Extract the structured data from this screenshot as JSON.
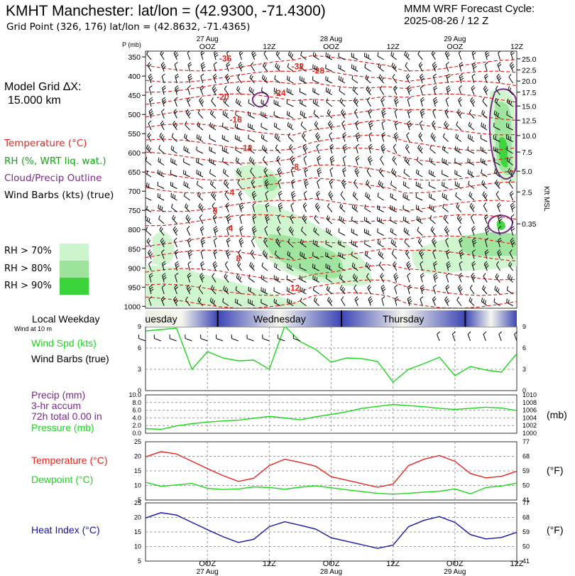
{
  "header": {
    "station_title": "KMHT Manchester:  lat/lon = (42.9300, -71.4300)",
    "grid_point": "Grid Point (326, 176) lat/lon = (42.8632, -71.4365)",
    "cycle_line1": "MMM WRF Forecast Cycle:",
    "cycle_line2": "2025-08-26 / 12  Z"
  },
  "left_panel": {
    "grid_dx_line1": "Model Grid ΔX:",
    "grid_dx_line2": "15.000 km",
    "legend": [
      {
        "label": "Temperature (°C)",
        "color": "#e8251e"
      },
      {
        "label": "RH (%, WRT liq. wat.)",
        "color": "#13a313"
      },
      {
        "label": "Cloud/Precip Outline",
        "color": "#7a2a8c"
      },
      {
        "label": "Wind Barbs (kts) (true)",
        "color": "#000000"
      }
    ],
    "rh_legend": [
      {
        "label": "RH > 70%",
        "color": "#cdf5cd"
      },
      {
        "label": "RH > 80%",
        "color": "#9ce39c"
      },
      {
        "label": "RH > 90%",
        "color": "#3ad43a"
      }
    ]
  },
  "time_axis": {
    "top_labels": [
      {
        "label": "OOZ",
        "date": "27 Aug",
        "hour": 12
      },
      {
        "label": "12Z",
        "date": "",
        "hour": 24
      },
      {
        "label": "OOZ",
        "date": "28 Aug",
        "hour": 36
      },
      {
        "label": "12Z",
        "date": "",
        "hour": 48
      },
      {
        "label": "OOZ",
        "date": "29 Aug",
        "hour": 60
      },
      {
        "label": "12Z",
        "date": "",
        "hour": 72
      }
    ],
    "range_hours": [
      0,
      72
    ]
  },
  "weekday_bar": {
    "title": "Local Weekday",
    "subtitle": "Wind at 10 m",
    "days": [
      {
        "label": "uesday",
        "start": 0,
        "end": 14
      },
      {
        "label": "Wednesday",
        "start": 14,
        "end": 38
      },
      {
        "label": "Thursday",
        "start": 38,
        "end": 62
      },
      {
        "label": "",
        "start": 62,
        "end": 72
      }
    ]
  },
  "chart_data": [
    {
      "type": "heatmap",
      "name": "sounding-cross-section",
      "ylabel": "P (mb)",
      "yticks": [
        350,
        400,
        450,
        500,
        550,
        600,
        650,
        700,
        750,
        800,
        850,
        900,
        950,
        1000
      ],
      "right_axis_label": "Kft MSL",
      "right_ticks": [
        {
          "p": 355,
          "label": "25.0"
        },
        {
          "p": 384,
          "label": "22.5"
        },
        {
          "p": 413,
          "label": "20.0"
        },
        {
          "p": 442,
          "label": "17.5"
        },
        {
          "p": 478,
          "label": "15.0"
        },
        {
          "p": 515,
          "label": "12.5"
        },
        {
          "p": 555,
          "label": "10.0"
        },
        {
          "p": 598,
          "label": "7.5"
        },
        {
          "p": 648,
          "label": "5.0"
        },
        {
          "p": 702,
          "label": "2.5"
        },
        {
          "p": 785,
          "label": "0.35"
        }
      ],
      "temperature_labels": [
        {
          "text": "-36",
          "x": 15.5,
          "p": 362
        },
        {
          "text": "-32",
          "x": 29.5,
          "p": 382
        },
        {
          "text": "-28",
          "x": 33.5,
          "p": 393
        },
        {
          "text": "-24",
          "x": 26.0,
          "p": 452
        },
        {
          "text": "-20",
          "x": 15.0,
          "p": 462
        },
        {
          "text": "-16",
          "x": 17.5,
          "p": 521
        },
        {
          "text": "-12",
          "x": 19.5,
          "p": 595
        },
        {
          "text": "-8",
          "x": 29.0,
          "p": 644
        },
        {
          "text": "-4",
          "x": 16.5,
          "p": 711
        },
        {
          "text": "0",
          "x": 13.5,
          "p": 760
        },
        {
          "text": "4",
          "x": 16.5,
          "p": 804
        },
        {
          "text": "8",
          "x": 18.0,
          "p": 883
        },
        {
          "text": "12",
          "x": 29.0,
          "p": 960
        }
      ]
    },
    {
      "type": "line",
      "name": "wind-speed",
      "series": [
        {
          "name": "Wind Spd (kts)",
          "color": "#1ad81a",
          "x": [
            0,
            3,
            6,
            9,
            12,
            15,
            18,
            21,
            24,
            27,
            30,
            33,
            36,
            39,
            42,
            45,
            48,
            51,
            54,
            57,
            60,
            63,
            66,
            69,
            72
          ],
          "values": [
            8.4,
            8.6,
            8.8,
            3.0,
            5.5,
            4.6,
            4.2,
            4.3,
            3.0,
            9.1,
            6.9,
            5.8,
            4.0,
            4.6,
            4.5,
            4.1,
            1.2,
            3.0,
            3.8,
            4.7,
            2.1,
            3.4,
            2.9,
            2.6,
            5.2
          ]
        }
      ],
      "ylim": [
        0,
        9
      ],
      "left_ticks": [
        0,
        3,
        6,
        9
      ],
      "right_ticks": [
        0,
        3,
        6,
        9
      ]
    },
    {
      "type": "line",
      "name": "precip-pressure",
      "series": [
        {
          "name": "Pressure (mb)",
          "color": "#1ad81a",
          "x": [
            0,
            3,
            6,
            9,
            12,
            15,
            18,
            21,
            24,
            27,
            30,
            33,
            36,
            39,
            42,
            45,
            48,
            51,
            54,
            57,
            60,
            63,
            66,
            69,
            72
          ],
          "values": [
            1001.2,
            1001.0,
            1001.9,
            1002.5,
            1002.9,
            1003.2,
            1003.4,
            1003.9,
            1004.4,
            1004.0,
            1003.5,
            1004.3,
            1004.9,
            1005.6,
            1006.5,
            1007.0,
            1007.5,
            1007.2,
            1006.9,
            1006.5,
            1006.2,
            1006.5,
            1006.8,
            1006.6,
            1005.9
          ]
        }
      ],
      "left_ticks": [
        "0.0",
        "2.0",
        "4.0",
        "6.0",
        "8.0",
        "10.0"
      ],
      "right_ticks": [
        "1000",
        "1002",
        "1004",
        "1006",
        "1008",
        "1010"
      ],
      "ylim": [
        1000,
        1010
      ]
    },
    {
      "type": "line",
      "name": "temperature-dewpoint",
      "series": [
        {
          "name": "Temperature (°C)",
          "color": "#e8251e",
          "x": [
            0,
            3,
            6,
            9,
            12,
            15,
            18,
            21,
            24,
            27,
            30,
            33,
            36,
            39,
            42,
            45,
            48,
            51,
            54,
            57,
            60,
            63,
            66,
            69,
            72
          ],
          "values": [
            19.8,
            21.6,
            20.8,
            18.3,
            15.8,
            13.4,
            11.4,
            12.5,
            16.8,
            19.0,
            17.9,
            16.6,
            13.0,
            11.8,
            10.6,
            9.4,
            10.5,
            16.8,
            19.0,
            20.3,
            18.3,
            14.1,
            12.6,
            13.1,
            14.9
          ]
        },
        {
          "name": "Dewpoint (°C)",
          "color": "#1ad81a",
          "x": [
            0,
            3,
            6,
            9,
            12,
            15,
            18,
            21,
            24,
            27,
            30,
            33,
            36,
            39,
            42,
            45,
            48,
            51,
            54,
            57,
            60,
            63,
            66,
            69,
            72
          ],
          "values": [
            11.1,
            9.7,
            10.2,
            10.7,
            9.0,
            8.6,
            8.8,
            9.5,
            9.3,
            8.7,
            9.4,
            9.9,
            9.2,
            8.5,
            7.9,
            7.3,
            7.0,
            7.3,
            7.7,
            8.0,
            8.8,
            7.1,
            9.3,
            9.8,
            10.8
          ]
        }
      ],
      "ylim": [
        5,
        25
      ],
      "left_ticks": [
        5,
        10,
        15,
        20,
        25
      ],
      "right_ticks": [
        "41",
        "50",
        "59",
        "68",
        "77"
      ]
    },
    {
      "type": "line",
      "name": "heat-index",
      "series": [
        {
          "name": "Heat Index (°C)",
          "color": "#1414a8",
          "x": [
            0,
            3,
            6,
            9,
            12,
            15,
            18,
            21,
            24,
            27,
            30,
            33,
            36,
            39,
            42,
            45,
            48,
            51,
            54,
            57,
            60,
            63,
            66,
            69,
            72
          ],
          "values": [
            19.8,
            21.6,
            20.8,
            18.3,
            15.8,
            13.4,
            11.4,
            12.5,
            16.8,
            18.5,
            17.3,
            16.0,
            13.0,
            11.8,
            10.6,
            9.4,
            10.5,
            16.8,
            19.0,
            20.3,
            18.3,
            14.1,
            12.6,
            13.1,
            14.9
          ]
        }
      ],
      "ylim": [
        5,
        25
      ],
      "left_ticks": [
        5,
        10,
        15,
        20,
        25
      ],
      "right_ticks": [
        "41",
        "50",
        "59",
        "68",
        "77"
      ]
    }
  ],
  "panel_labels": {
    "wind_spd": "Wind Spd (kts)",
    "wind_barbs": "Wind Barbs (true)",
    "precip_line1": "Precip (mm)",
    "precip_line2": "3-hr accum",
    "precip_line3": "72h total 0.00 in",
    "pressure": "Pressure (mb)",
    "pressure_unit": "(mb)",
    "temperature": "Temperature (°C)",
    "dewpoint": "Dewpoint (°C)",
    "temp_unit": "(°F)",
    "heat_index": "Heat Index (°C)",
    "heat_unit": "(°F)"
  },
  "bottom_axis": [
    {
      "label": "OOZ",
      "date": "27 Aug",
      "hour": 12
    },
    {
      "label": "12Z",
      "date": "",
      "hour": 24
    },
    {
      "label": "OOZ",
      "date": "28 Aug",
      "hour": 36
    },
    {
      "label": "12Z",
      "date": "",
      "hour": 48
    },
    {
      "label": "OOZ",
      "date": "29 Aug",
      "hour": 60
    },
    {
      "label": "12Z",
      "date": "",
      "hour": 72
    }
  ],
  "colors": {
    "temperature": "#e8251e",
    "green_line": "#1ad81a",
    "blue_line": "#1414a8",
    "cloud_outline": "#7a2a8c",
    "precip_label": "#7a2a8c"
  }
}
